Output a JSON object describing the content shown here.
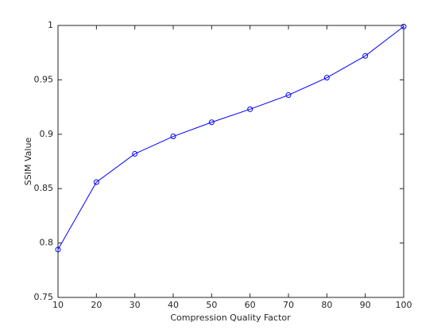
{
  "chart_data": {
    "type": "line",
    "x_label": "Compression Quality Factor",
    "y_label": "SSIM Value",
    "series": [
      {
        "color": "#0000ff",
        "marker": "circle",
        "x": [
          10,
          20,
          30,
          40,
          50,
          60,
          70,
          80,
          90,
          100
        ],
        "values": [
          0.794,
          0.856,
          0.882,
          0.898,
          0.911,
          0.923,
          0.936,
          0.952,
          0.972,
          0.999
        ]
      }
    ],
    "xlim": [
      10,
      100
    ],
    "xticks": [
      10,
      20,
      30,
      40,
      50,
      60,
      70,
      80,
      90,
      100
    ],
    "ylim": [
      0.75,
      1
    ],
    "yticks": [
      0.75,
      0.8,
      0.85,
      0.9,
      0.95,
      1
    ],
    "grid": false
  }
}
